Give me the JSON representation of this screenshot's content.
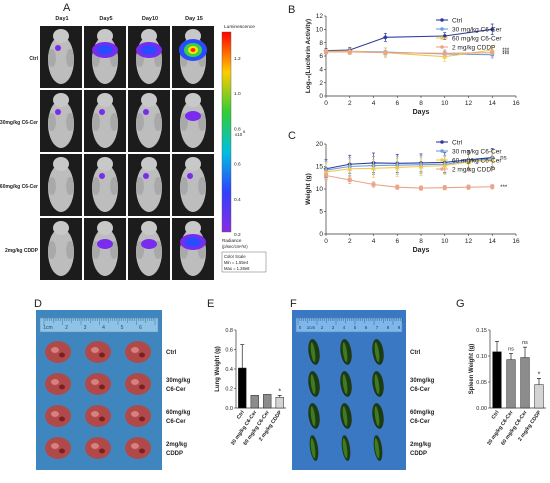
{
  "panel_letters": {
    "A": "A",
    "B": "B",
    "C": "C",
    "D": "D",
    "E": "E",
    "F": "F",
    "G": "G"
  },
  "panelA": {
    "day_labels": [
      "Day1",
      "Day5",
      "Day10",
      "Day 15"
    ],
    "group_labels": [
      "Ctrl",
      "30mg/kg C6-Cer",
      "60mg/kg C6-Cer",
      "2mg/kg CDDP"
    ],
    "colorbar": {
      "title": "Luminescence",
      "ticks": [
        "1.2",
        "1.0",
        "0.8",
        "0.6",
        "0.4",
        "0.2"
      ],
      "exponent": "x10",
      "exponent_power": "8",
      "radiance_label": "Radiance",
      "radiance_unit": "(p/sec/cm²/sr)",
      "scale_title": "Color Scale",
      "scale_min": "Min = 1.55e4",
      "scale_max": "Max = 1.28e8"
    },
    "colors": {
      "tumor_bright": "#ff2a00",
      "tumor_mid": "#ffe600",
      "tumor_green": "#37d04a",
      "tumor_blue": "#2b4bff",
      "tumor_purple": "#7a2bf0"
    }
  },
  "chart_data": [
    {
      "panel": "B",
      "type": "line",
      "x": [
        0,
        2,
        5,
        10,
        14
      ],
      "xlabel": "Days",
      "ylabel": "Log₁₀(Luciferin Activity)",
      "ylim": [
        0,
        12
      ],
      "xlim": [
        0,
        16
      ],
      "xticks": [
        "0",
        "2",
        "4",
        "6",
        "8",
        "10",
        "12",
        "14",
        "16"
      ],
      "yticks": [
        "0",
        "2",
        "4",
        "6",
        "8",
        "10",
        "12"
      ],
      "legend_position": "top-right",
      "series": [
        {
          "name": "Ctrl",
          "color": "#2f3c9e",
          "marker": "diamond",
          "values": [
            6.8,
            6.9,
            8.8,
            9.0,
            10.0
          ],
          "err": [
            0.3,
            0.4,
            0.6,
            0.5,
            0.8
          ]
        },
        {
          "name": "30 mg/kg C6-Cer",
          "color": "#6d9ee0",
          "marker": "circle",
          "values": [
            6.6,
            6.7,
            6.6,
            6.3,
            6.2
          ],
          "err": [
            0.3,
            0.5,
            0.6,
            0.6,
            0.5
          ]
        },
        {
          "name": "60 mg/kg C6-Cer",
          "color": "#f0c94a",
          "marker": "triangle",
          "values": [
            6.7,
            6.7,
            6.5,
            5.9,
            6.9
          ],
          "err": [
            0.3,
            0.5,
            0.7,
            0.7,
            0.6
          ]
        },
        {
          "name": "2 mg/kg CDDP",
          "color": "#e9a58a",
          "marker": "square",
          "values": [
            6.6,
            6.6,
            6.5,
            6.4,
            6.5
          ],
          "err": [
            0.3,
            0.3,
            0.3,
            0.3,
            0.3
          ]
        }
      ],
      "annotations": [
        "***",
        "***",
        "***"
      ]
    },
    {
      "panel": "C",
      "type": "line",
      "x": [
        0,
        2,
        4,
        6,
        8,
        10,
        12,
        14
      ],
      "xlabel": "Days",
      "ylabel": "Weight (g)",
      "ylim": [
        0,
        20
      ],
      "xlim": [
        0,
        16
      ],
      "xticks": [
        "0",
        "2",
        "4",
        "6",
        "8",
        "10",
        "12",
        "14",
        "16"
      ],
      "yticks": [
        "0",
        "5",
        "10",
        "15",
        "20"
      ],
      "legend_position": "top-right",
      "series": [
        {
          "name": "Ctrl",
          "color": "#2f3c9e",
          "marker": "diamond",
          "values": [
            14.5,
            15.5,
            15.8,
            15.7,
            15.8,
            15.9,
            16.5,
            17.0
          ],
          "err": [
            2.0,
            2.0,
            2.2,
            2.0,
            2.0,
            2.2,
            2.0,
            2.0
          ]
        },
        {
          "name": "30 mg/kg C6-Cer",
          "color": "#6d9ee0",
          "marker": "circle",
          "values": [
            14.2,
            15.0,
            15.2,
            15.3,
            15.4,
            15.5,
            16.2,
            16.8
          ],
          "err": [
            2.0,
            2.0,
            2.0,
            2.0,
            2.0,
            2.0,
            2.0,
            2.0
          ]
        },
        {
          "name": "60 mg/kg C6-Cer",
          "color": "#f0c94a",
          "marker": "triangle",
          "values": [
            13.8,
            14.5,
            14.6,
            14.8,
            15.0,
            15.2,
            16.0,
            16.5
          ],
          "err": [
            2.0,
            2.0,
            2.0,
            2.0,
            2.0,
            2.0,
            2.0,
            2.0
          ]
        },
        {
          "name": "2 mg/kg CDDP",
          "color": "#e9a58a",
          "marker": "square",
          "values": [
            13.0,
            12.0,
            11.0,
            10.4,
            10.2,
            10.3,
            10.4,
            10.5
          ],
          "err": [
            1.0,
            0.8,
            0.6,
            0.5,
            0.5,
            0.5,
            0.5,
            0.5
          ]
        }
      ],
      "annotations": [
        "ns",
        "***"
      ]
    },
    {
      "panel": "E",
      "type": "bar",
      "categories": [
        "Ctrl",
        "30 mg/kg C6-Cer",
        "60 mg/kg C6-Cer",
        "2 mg/kg CDDP"
      ],
      "values": [
        0.41,
        0.13,
        0.14,
        0.11
      ],
      "err": [
        0.24,
        0.0,
        0.0,
        0.02
      ],
      "colors": [
        "#000000",
        "#8c8c8c",
        "#8c8c8c",
        "#d4d4d4"
      ],
      "ylabel": "Lung Weight (g)",
      "ylim": [
        0,
        0.8
      ],
      "yticks": [
        "0.0",
        "0.2",
        "0.4",
        "0.6",
        "0.8"
      ],
      "annotations": [
        "*"
      ]
    },
    {
      "panel": "G",
      "type": "bar",
      "categories": [
        "Ctrl",
        "30 mg/kg C6-Cer",
        "60 mg/kg C6-Cer",
        "2 mg/kg CDDP"
      ],
      "values": [
        0.108,
        0.093,
        0.097,
        0.045
      ],
      "err": [
        0.02,
        0.012,
        0.02,
        0.012
      ],
      "colors": [
        "#000000",
        "#8c8c8c",
        "#8c8c8c",
        "#d4d4d4"
      ],
      "ylabel": "Spleen Weight (g)",
      "ylim": [
        0,
        0.15
      ],
      "yticks": [
        "0.00",
        "0.05",
        "0.10",
        "0.15"
      ],
      "annotations": [
        "ns",
        "ns",
        "*"
      ]
    }
  ],
  "panelD": {
    "labels": [
      "Ctrl",
      "30mg/kg",
      "C6-Cer",
      "60mg/kg",
      "C6-Cer",
      "2mg/kg",
      "CDDP"
    ],
    "ruler_marks": [
      "1cm",
      "2",
      "3",
      "4",
      "5",
      "6"
    ],
    "colors": {
      "bg": "#3f86bf",
      "tissue": "#b04a4a"
    }
  },
  "panelF": {
    "labels": [
      "Ctrl",
      "30mg/kg",
      "C6-Cer",
      "60mg/kg",
      "C6-Cer",
      "2mg/kg",
      "CDDP"
    ],
    "ruler_marks": [
      "0",
      "1cm",
      "2",
      "3",
      "4",
      "5",
      "6",
      "7",
      "8",
      "9"
    ],
    "colors": {
      "bg": "#3a78c4",
      "tissue": "#1e3a12"
    }
  }
}
